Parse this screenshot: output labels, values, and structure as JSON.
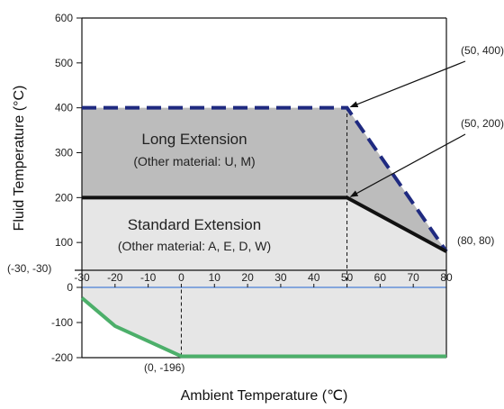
{
  "chart_data": {
    "type": "line",
    "title": "",
    "xlabel": "Ambient Temperature (℃)",
    "ylabel": "Fluid Temperature (°C)",
    "xlim": [
      -30,
      80
    ],
    "ylim": [
      -200,
      600
    ],
    "x_ticks": [
      -30,
      -20,
      -10,
      0,
      10,
      20,
      30,
      40,
      50,
      60,
      70,
      80
    ],
    "x_tick_labels": [
      "-30",
      "-20",
      "-10",
      "0",
      "10",
      "20",
      "30",
      "40",
      "50",
      "60",
      "70",
      "80"
    ],
    "y_ticks": [
      600,
      500,
      400,
      300,
      200,
      100,
      0,
      -100,
      -200
    ],
    "y_tick_labels": [
      "600",
      "500",
      "400",
      "300",
      "200",
      "100",
      "0",
      "-100",
      "-200"
    ],
    "grid": false,
    "series": [
      {
        "style": "dashed",
        "color": "#1f2a80",
        "points": [
          [
            -30,
            400
          ],
          [
            50,
            400
          ],
          [
            80,
            80
          ]
        ]
      },
      {
        "style": "solid",
        "color": "#111111",
        "points": [
          [
            -30,
            200
          ],
          [
            50,
            200
          ],
          [
            80,
            80
          ]
        ]
      },
      {
        "style": "solid",
        "color": "#4caf6a",
        "points": [
          [
            -30,
            -30
          ],
          [
            -20,
            -110
          ],
          [
            0,
            -196
          ],
          [
            80,
            -196
          ]
        ]
      }
    ],
    "regions": [
      {
        "title": "Long Extension",
        "subtitle": "(Other material: U, M)",
        "color": "#bcbcbc",
        "points": [
          [
            -30,
            400
          ],
          [
            50,
            400
          ],
          [
            80,
            80
          ],
          [
            50,
            200
          ],
          [
            -30,
            200
          ]
        ]
      },
      {
        "title": "Standard Extension",
        "subtitle": "(Other material: A, E, D, W)",
        "color": "#e6e6e6",
        "points": [
          [
            -30,
            200
          ],
          [
            50,
            200
          ],
          [
            80,
            80
          ],
          [
            80,
            -196
          ],
          [
            0,
            -196
          ],
          [
            -20,
            -110
          ],
          [
            -30,
            -30
          ]
        ]
      }
    ],
    "annotations": [
      {
        "text": "(50, 400)",
        "point": [
          50,
          400
        ],
        "arrow": true
      },
      {
        "text": "(50, 200)",
        "point": [
          50,
          200
        ],
        "arrow": true
      },
      {
        "text": "(80, 80)",
        "point": [
          80,
          80
        ],
        "arrow": false
      },
      {
        "text": "(-30, -30)",
        "point": [
          -30,
          -30
        ],
        "arrow": false
      },
      {
        "text": "(0, -196)",
        "point": [
          0,
          -196
        ],
        "arrow": false
      }
    ],
    "reference_lines": [
      {
        "x": 50,
        "from": 0,
        "to": 400
      },
      {
        "x": 0,
        "from": -196,
        "to": 0
      }
    ],
    "zero_line_color": "#4a7fd6"
  }
}
